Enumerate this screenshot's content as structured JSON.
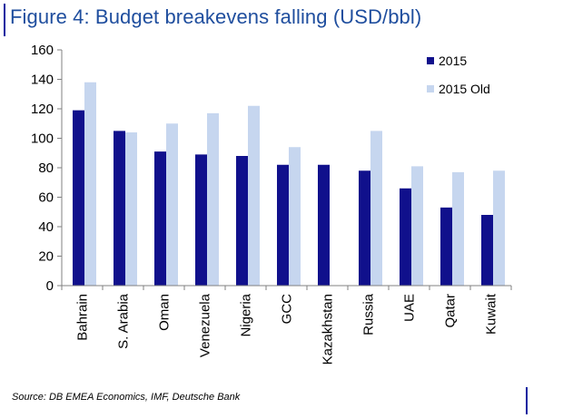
{
  "figure": {
    "title": "Figure 4: Budget breakevens falling (USD/bbl)",
    "source": "Source: DB EMEA Economics, IMF, Deutsche Bank"
  },
  "colors": {
    "title": "#1f4e9e",
    "frame": "#0a1ea0",
    "series_2015": "#10108c",
    "series_2015_old": "#c6d6ef"
  },
  "chart_data": {
    "type": "bar",
    "title": "Figure 4: Budget breakevens falling (USD/bbl)",
    "xlabel": "",
    "ylabel": "",
    "ylim": [
      0,
      160
    ],
    "yticks": [
      0,
      20,
      40,
      60,
      80,
      100,
      120,
      140,
      160
    ],
    "grid": false,
    "legend_position": "top-right",
    "categories": [
      "Bahrain",
      "S. Arabia",
      "Oman",
      "Venezuela",
      "Nigeria",
      "GCC",
      "Kazakhstan",
      "Russia",
      "UAE",
      "Qatar",
      "Kuwait"
    ],
    "series": [
      {
        "name": "2015",
        "color": "#10108c",
        "values": [
          119,
          105,
          91,
          89,
          88,
          82,
          82,
          78,
          66,
          53,
          48
        ]
      },
      {
        "name": "2015 Old",
        "color": "#c6d6ef",
        "values": [
          138,
          104,
          110,
          117,
          122,
          94,
          null,
          105,
          81,
          77,
          78
        ]
      }
    ]
  }
}
